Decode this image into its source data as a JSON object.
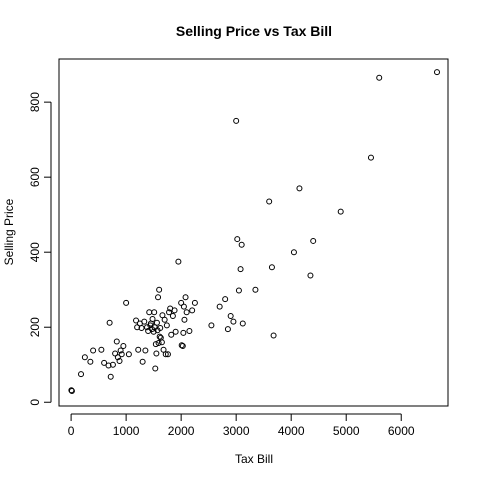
{
  "chart_data": {
    "type": "scatter",
    "title": "Selling Price vs Tax Bill",
    "xlabel": "Tax Bill",
    "ylabel": "Selling Price",
    "xlim": [
      -220,
      6850
    ],
    "ylim": [
      -10,
      915
    ],
    "xticks": [
      0,
      1000,
      2000,
      3000,
      4000,
      5000,
      6000
    ],
    "yticks": [
      0,
      200,
      400,
      600,
      800
    ],
    "grid": false,
    "legend": "none",
    "marker": "open-circle",
    "points": [
      [
        5,
        32
      ],
      [
        15,
        30
      ],
      [
        180,
        75
      ],
      [
        250,
        120
      ],
      [
        350,
        108
      ],
      [
        400,
        138
      ],
      [
        550,
        140
      ],
      [
        600,
        105
      ],
      [
        680,
        98
      ],
      [
        700,
        212
      ],
      [
        720,
        68
      ],
      [
        760,
        100
      ],
      [
        800,
        130
      ],
      [
        830,
        162
      ],
      [
        850,
        120
      ],
      [
        880,
        110
      ],
      [
        900,
        138
      ],
      [
        920,
        128
      ],
      [
        950,
        150
      ],
      [
        1000,
        265
      ],
      [
        1050,
        128
      ],
      [
        1180,
        218
      ],
      [
        1200,
        200
      ],
      [
        1220,
        140
      ],
      [
        1250,
        210
      ],
      [
        1280,
        198
      ],
      [
        1300,
        108
      ],
      [
        1330,
        215
      ],
      [
        1350,
        138
      ],
      [
        1380,
        200
      ],
      [
        1400,
        190
      ],
      [
        1420,
        240
      ],
      [
        1440,
        205
      ],
      [
        1450,
        210
      ],
      [
        1470,
        195
      ],
      [
        1480,
        222
      ],
      [
        1500,
        188
      ],
      [
        1510,
        240
      ],
      [
        1520,
        200
      ],
      [
        1530,
        90
      ],
      [
        1540,
        155
      ],
      [
        1550,
        130
      ],
      [
        1560,
        212
      ],
      [
        1570,
        192
      ],
      [
        1580,
        280
      ],
      [
        1590,
        158
      ],
      [
        1600,
        300
      ],
      [
        1610,
        175
      ],
      [
        1620,
        198
      ],
      [
        1630,
        172
      ],
      [
        1650,
        160
      ],
      [
        1660,
        232
      ],
      [
        1680,
        140
      ],
      [
        1700,
        220
      ],
      [
        1720,
        128
      ],
      [
        1740,
        205
      ],
      [
        1760,
        128
      ],
      [
        1780,
        240
      ],
      [
        1800,
        250
      ],
      [
        1820,
        180
      ],
      [
        1850,
        230
      ],
      [
        1880,
        245
      ],
      [
        1900,
        188
      ],
      [
        1950,
        375
      ],
      [
        2000,
        265
      ],
      [
        2010,
        152
      ],
      [
        2030,
        150
      ],
      [
        2040,
        185
      ],
      [
        2050,
        255
      ],
      [
        2060,
        220
      ],
      [
        2080,
        280
      ],
      [
        2100,
        240
      ],
      [
        2150,
        190
      ],
      [
        2200,
        245
      ],
      [
        2250,
        265
      ],
      [
        2550,
        205
      ],
      [
        2700,
        255
      ],
      [
        2800,
        275
      ],
      [
        2850,
        195
      ],
      [
        2900,
        230
      ],
      [
        2950,
        215
      ],
      [
        3000,
        750
      ],
      [
        3020,
        435
      ],
      [
        3050,
        298
      ],
      [
        3080,
        355
      ],
      [
        3100,
        420
      ],
      [
        3120,
        210
      ],
      [
        3350,
        300
      ],
      [
        3600,
        535
      ],
      [
        3650,
        360
      ],
      [
        3680,
        178
      ],
      [
        4050,
        400
      ],
      [
        4150,
        570
      ],
      [
        4350,
        338
      ],
      [
        4400,
        430
      ],
      [
        4900,
        508
      ],
      [
        5450,
        652
      ],
      [
        5600,
        865
      ],
      [
        6650,
        880
      ]
    ]
  }
}
